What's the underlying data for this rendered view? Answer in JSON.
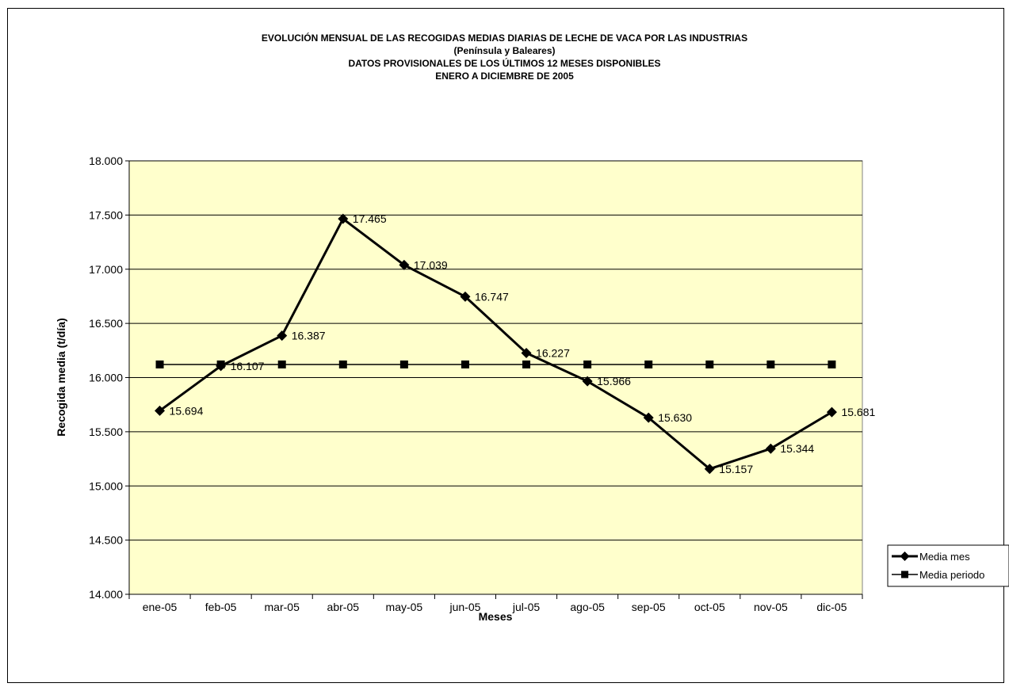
{
  "chart_data": {
    "type": "line",
    "title_lines": [
      "EVOLUCIÓN MENSUAL DE LAS RECOGIDAS MEDIAS DIARIAS DE LECHE DE VACA POR LAS INDUSTRIAS",
      "(Península y Baleares)",
      "DATOS PROVISIONALES DE LOS ÚLTIMOS 12 MESES DISPONIBLES",
      "ENERO A DICIEMBRE DE 2005"
    ],
    "xlabel": "Meses",
    "ylabel": "Recogida media (t/día)",
    "categories": [
      "ene-05",
      "feb-05",
      "mar-05",
      "abr-05",
      "may-05",
      "jun-05",
      "jul-05",
      "ago-05",
      "sep-05",
      "oct-05",
      "nov-05",
      "dic-05"
    ],
    "ylim": [
      14000,
      18000
    ],
    "ytick_step": 500,
    "ytick_labels": [
      "14.000",
      "14.500",
      "15.000",
      "15.500",
      "16.000",
      "16.500",
      "17.000",
      "17.500",
      "18.000"
    ],
    "grid": "horizontal",
    "plot_background": "#FFFFCC",
    "legend_position": "right",
    "series": [
      {
        "name": "Media mes",
        "marker": "diamond",
        "color": "#000000",
        "values": [
          15694,
          16107,
          16387,
          17465,
          17039,
          16747,
          16227,
          15966,
          15630,
          15157,
          15344,
          15681
        ],
        "data_labels": [
          "15.694",
          "16.107",
          "16.387",
          "17.465",
          "17.039",
          "16.747",
          "16.227",
          "15.966",
          "15.630",
          "15.157",
          "15.344",
          "15.681"
        ]
      },
      {
        "name": "Media periodo",
        "marker": "square",
        "color": "#000000",
        "values": [
          16121,
          16121,
          16121,
          16121,
          16121,
          16121,
          16121,
          16121,
          16121,
          16121,
          16121,
          16121
        ]
      }
    ]
  }
}
